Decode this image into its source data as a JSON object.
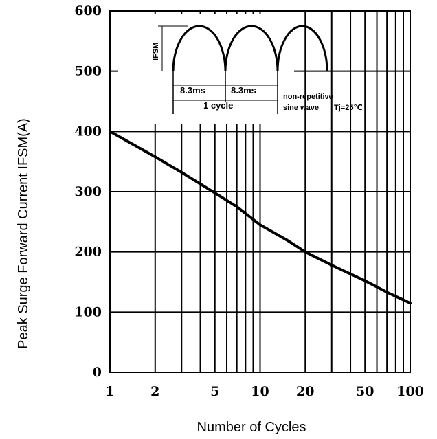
{
  "chart_data": {
    "type": "line",
    "xlabel": "Number of Cycles",
    "ylabel": "Peak Surge Forward Current IFSM(A)",
    "x_scale": "log",
    "xlim": [
      1,
      100
    ],
    "ylim": [
      0,
      600
    ],
    "x_ticks": [
      1,
      2,
      5,
      10,
      20,
      50,
      100
    ],
    "y_ticks": [
      0,
      100,
      200,
      300,
      400,
      500,
      600
    ],
    "grid": true,
    "series": [
      {
        "x": [
          1,
          2,
          3,
          5,
          7,
          10,
          15,
          20,
          30,
          50,
          70,
          100
        ],
        "y": [
          400,
          358,
          332,
          298,
          275,
          245,
          220,
          200,
          178,
          152,
          133,
          115
        ]
      }
    ],
    "inset": {
      "ifsm_label": "IFSM",
      "period_1": "8.3ms",
      "period_2": "8.3ms",
      "cycle_label": "1 cycle",
      "note_line1": "non-repetitive",
      "note_line2": "sine wave",
      "temp_label": "Tj=25℃"
    }
  }
}
